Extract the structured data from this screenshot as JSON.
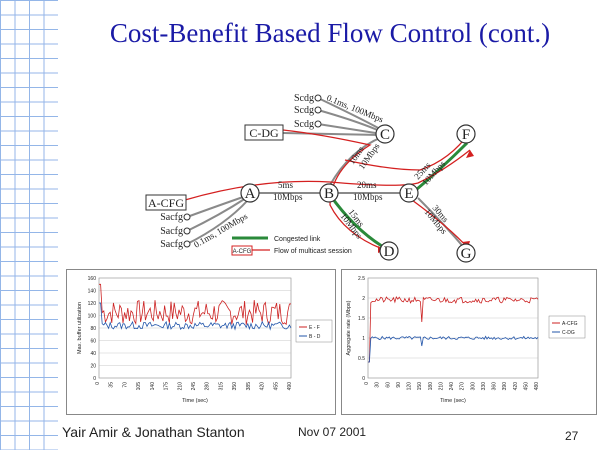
{
  "title": "Cost-Benefit Based Flow Control (cont.)",
  "footer": {
    "authors": "Yair Amir & Jonathan Stanton",
    "date": "Nov 07 2001",
    "page": "27"
  },
  "diagram": {
    "nodes": {
      "A": "A",
      "B": "B",
      "C": "C",
      "D": "D",
      "E": "E",
      "F": "F",
      "G": "G"
    },
    "groups": {
      "acfg": "A-CFG",
      "cdg": "C-DG"
    },
    "senders_top": [
      "Scdg",
      "Scdg",
      "Scdg"
    ],
    "senders_left": [
      "Sacfg",
      "Sacfg",
      "Sacfg"
    ],
    "link_labels": {
      "top_access": "0.1ms, 100Mbps",
      "left_access": "0.1ms, 100Mbps",
      "ab": [
        "5ms",
        "10Mbps"
      ],
      "be": [
        "20ms",
        "10Mbps"
      ],
      "bc": [
        "10ms",
        "10Mbps"
      ],
      "bd": [
        "15ms",
        "10Mbps"
      ],
      "ef": [
        "25ms",
        "10Mbps"
      ],
      "eg": [
        "30ms",
        "10Mbps"
      ]
    },
    "legend": {
      "congested": "Congested link",
      "flow_box": "A-CFG",
      "flow_text": "Flow of multicast session"
    },
    "colors": {
      "red": "#d42020",
      "green": "#2a8a3a",
      "blue": "#1a1aa6"
    }
  },
  "charts": {
    "left": {
      "type": "line",
      "ylabel": "Max. buffer utilization",
      "xlabel": "Time (sec)",
      "ylim": [
        0,
        160
      ],
      "yticks": [
        "0",
        "20",
        "40",
        "60",
        "80",
        "100",
        "120",
        "140",
        "160"
      ],
      "xticks": [
        "0",
        "35",
        "70",
        "105",
        "140",
        "175",
        "210",
        "245",
        "280",
        "315",
        "350",
        "385",
        "420",
        "455",
        "490"
      ],
      "legend": [
        "E - F",
        "B - D"
      ],
      "colors": [
        "#cc2222",
        "#2255aa"
      ]
    },
    "right": {
      "type": "line",
      "ylabel": "Aggregate rate (Mbps)",
      "xlabel": "Time (sec)",
      "ylim": [
        0,
        2.5
      ],
      "yticks": [
        "0",
        "0.5",
        "1",
        "1.5",
        "2",
        "2.5"
      ],
      "xticks": [
        "0",
        "30",
        "60",
        "90",
        "120",
        "150",
        "180",
        "210",
        "240",
        "270",
        "300",
        "330",
        "360",
        "390",
        "420",
        "450",
        "480"
      ],
      "legend": [
        "A-CFG",
        "C-DG"
      ],
      "colors": [
        "#cc2222",
        "#2255aa"
      ]
    }
  }
}
